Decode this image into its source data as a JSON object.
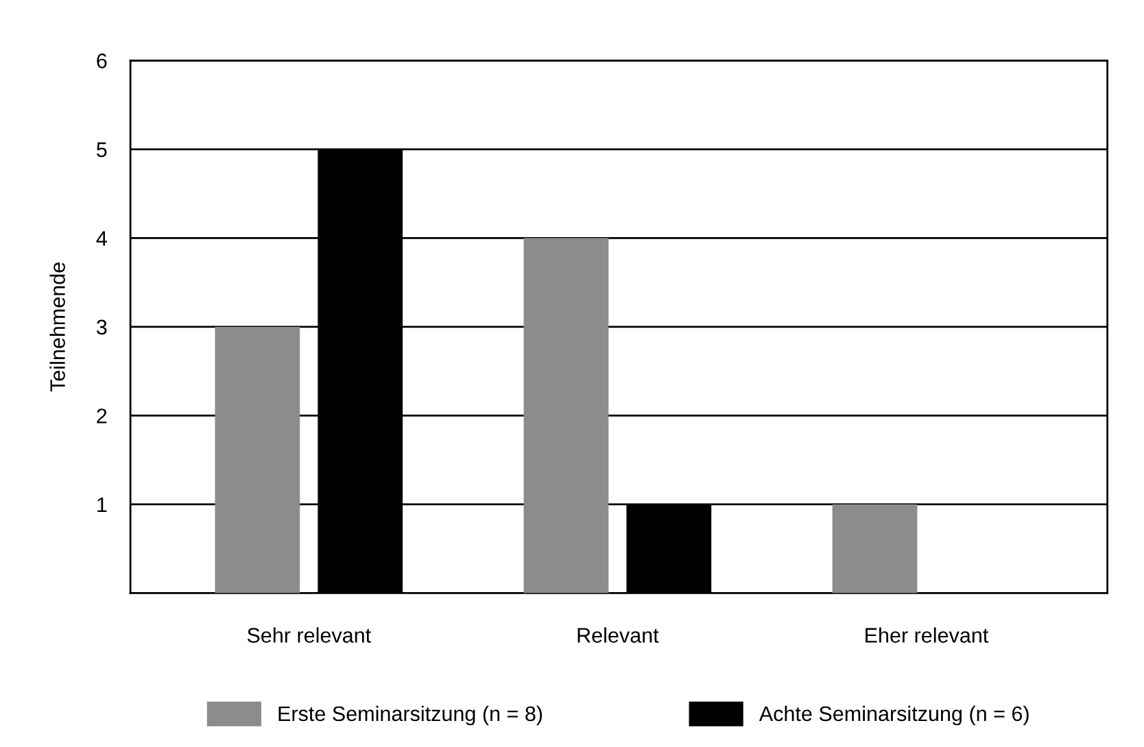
{
  "chart_data": {
    "type": "bar",
    "ylabel": "Teilnehmende",
    "categories": [
      "Sehr relevant",
      "Relevant",
      "Eher relevant"
    ],
    "series": [
      {
        "name": "Erste Seminarsitzung (n = 8)",
        "color": "#8c8c8c",
        "values": [
          3,
          4,
          1
        ]
      },
      {
        "name": "Achte Seminarsitzung (n = 6)",
        "color": "#000000",
        "values": [
          5,
          1,
          0
        ]
      }
    ],
    "ylim": [
      0,
      6
    ],
    "yticks": [
      {
        "value": 0,
        "label": null
      },
      1,
      2,
      3,
      4,
      5,
      6
    ],
    "grid": "y",
    "legend": "bottom"
  }
}
